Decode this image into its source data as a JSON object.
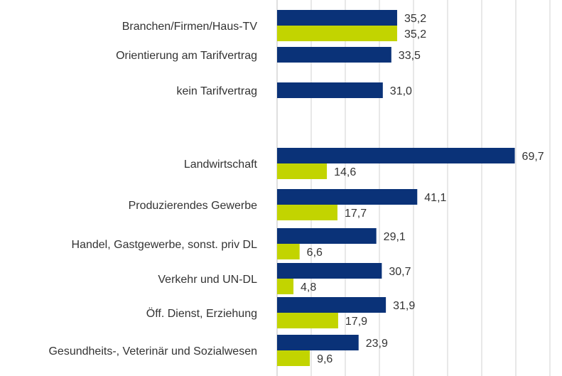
{
  "chart_data": {
    "type": "bar",
    "orientation": "horizontal",
    "categories": [
      "Branchen/Firmen/Haus-TV",
      "Orientierung am Tarifvertrag",
      "kein Tarifvertrag",
      "Landwirtschaft",
      "Produzierendes Gewerbe",
      "Handel, Gastgewerbe, sonst. priv DL",
      "Verkehr und UN-DL",
      "Öff. Dienst, Erziehung",
      "Gesundheits-, Veterinär und Sozialwesen"
    ],
    "series": [
      {
        "color": "#0a3278",
        "values": [
          35.2,
          33.5,
          31.0,
          69.7,
          41.1,
          29.1,
          30.7,
          31.9,
          23.9
        ],
        "labels": [
          "35,2",
          "33,5",
          "31,0",
          "69,7",
          "41,1",
          "29,1",
          "30,7",
          "31,9",
          "23,9"
        ]
      },
      {
        "color": "#c2d400",
        "values": [
          35.2,
          null,
          null,
          14.6,
          17.7,
          6.6,
          4.8,
          17.9,
          9.6
        ],
        "labels": [
          "35,2",
          "",
          "",
          "14,6",
          "17,7",
          "6,6",
          "4,8",
          "17,9",
          "9,6"
        ]
      }
    ],
    "xlim": [
      0,
      80
    ],
    "grid": true,
    "legend": "none",
    "title": "",
    "xlabel": "",
    "ylabel": ""
  }
}
